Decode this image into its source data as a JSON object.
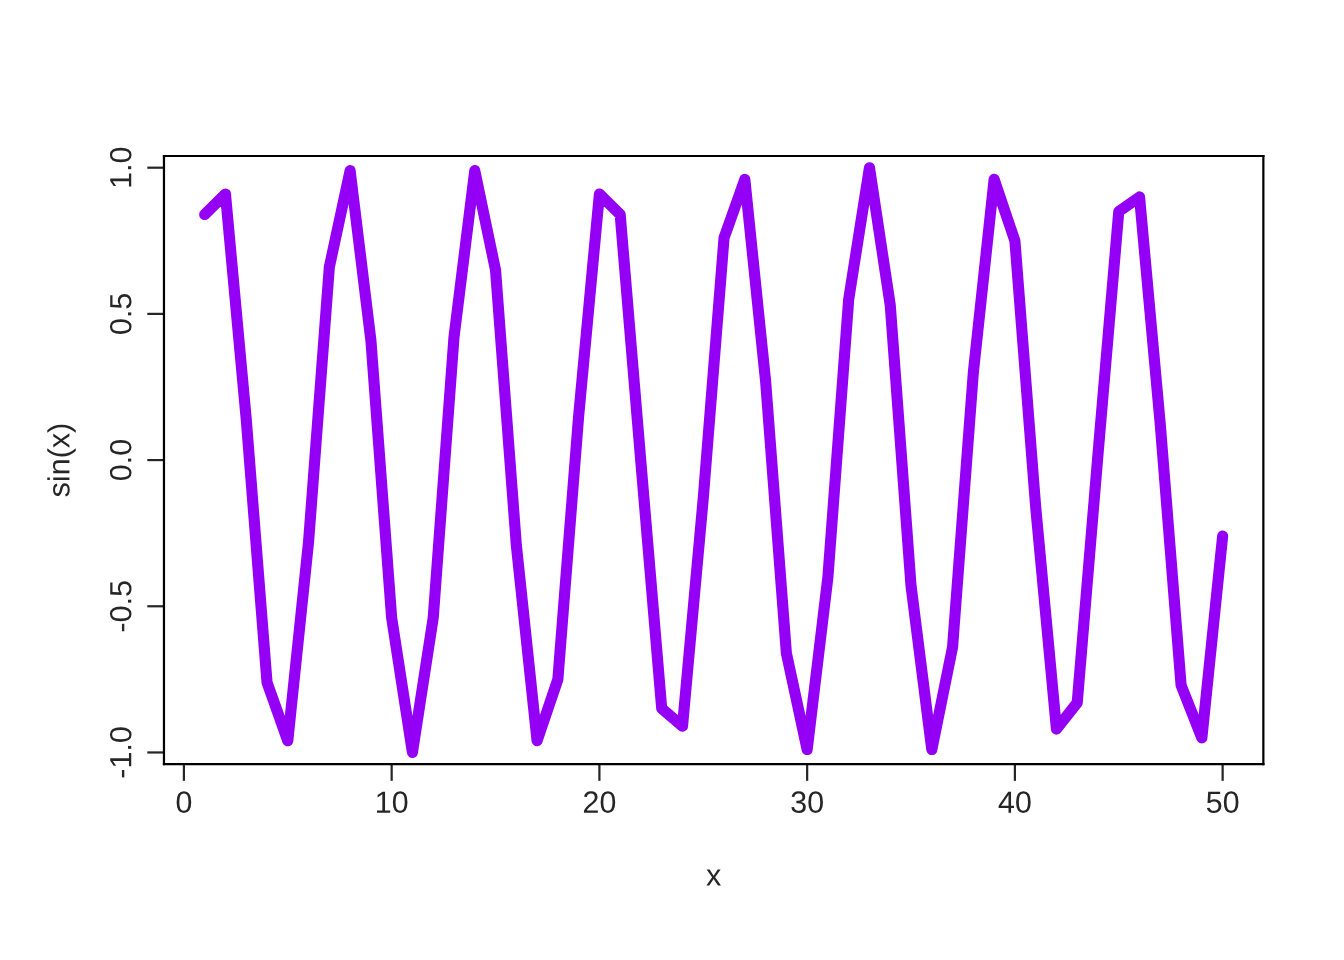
{
  "chart_data": {
    "type": "line",
    "xlabel": "x",
    "ylabel": "sin(x)",
    "x": [
      1,
      2,
      3,
      4,
      5,
      6,
      7,
      8,
      9,
      10,
      11,
      12,
      13,
      14,
      15,
      16,
      17,
      18,
      19,
      20,
      21,
      22,
      23,
      24,
      25,
      26,
      27,
      28,
      29,
      30,
      31,
      32,
      33,
      34,
      35,
      36,
      37,
      38,
      39,
      40,
      41,
      42,
      43,
      44,
      45,
      46,
      47,
      48,
      49,
      50
    ],
    "series": [
      {
        "color": "#9400f5",
        "values": [
          0.84,
          0.91,
          0.14,
          -0.76,
          -0.96,
          -0.28,
          0.66,
          0.99,
          0.41,
          -0.54,
          -1.0,
          -0.54,
          0.42,
          0.99,
          0.65,
          -0.29,
          -0.96,
          -0.75,
          0.15,
          0.91,
          0.84,
          -0.01,
          -0.85,
          -0.91,
          -0.13,
          0.76,
          0.96,
          0.27,
          -0.66,
          -0.99,
          -0.4,
          0.55,
          1.0,
          0.53,
          -0.43,
          -0.99,
          -0.64,
          0.3,
          0.96,
          0.75,
          -0.16,
          -0.92,
          -0.83,
          0.02,
          0.85,
          0.9,
          0.12,
          -0.77,
          -0.95,
          -0.26
        ]
      }
    ],
    "xlim": [
      -0.96,
      51.96
    ],
    "ylim": [
      -1.04,
      1.04
    ],
    "xticks": [
      0,
      10,
      20,
      30,
      40,
      50
    ],
    "yticks": [
      {
        "value": -1,
        "label": "-1.0"
      },
      {
        "value": -0.5,
        "label": "-0.5"
      },
      {
        "value": 0,
        "label": "0.0"
      },
      {
        "value": 0.5,
        "label": "0.5"
      },
      {
        "value": 1,
        "label": "1.0"
      }
    ],
    "line_style": "solid",
    "marker": "none"
  }
}
